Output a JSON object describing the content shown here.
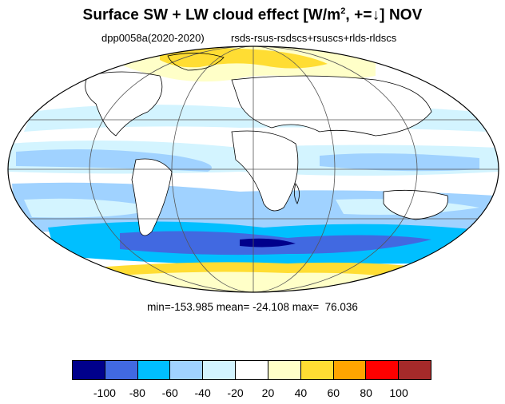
{
  "title": {
    "main": "Surface SW + LW cloud effect [W/m",
    "superscript": "2",
    "suffix": ", +=↓]  NOV"
  },
  "subtitle": {
    "left": "dpp0058a(2020-2020)",
    "right": "rsds-rsus-rsdscs+rsuscs+rlds-rldscs"
  },
  "stats": {
    "min": "min=-153.985",
    "mean": "mean= -24.108",
    "max": "max=  76.036"
  },
  "colorbar": {
    "colors": [
      "#00008b",
      "#4169e1",
      "#00bfff",
      "#a0d2ff",
      "#d3f4ff",
      "#ffffff",
      "#ffffc8",
      "#ffdd33",
      "#ffa500",
      "#ff0000",
      "#a52a2a"
    ],
    "labels": [
      "-100",
      "-80",
      "-60",
      "-40",
      "-20",
      "20",
      "40",
      "60",
      "80",
      "100"
    ]
  },
  "map": {
    "projection": "mollweide",
    "colors": {
      "gridlines": "#555555",
      "coastline": "#000000"
    }
  }
}
